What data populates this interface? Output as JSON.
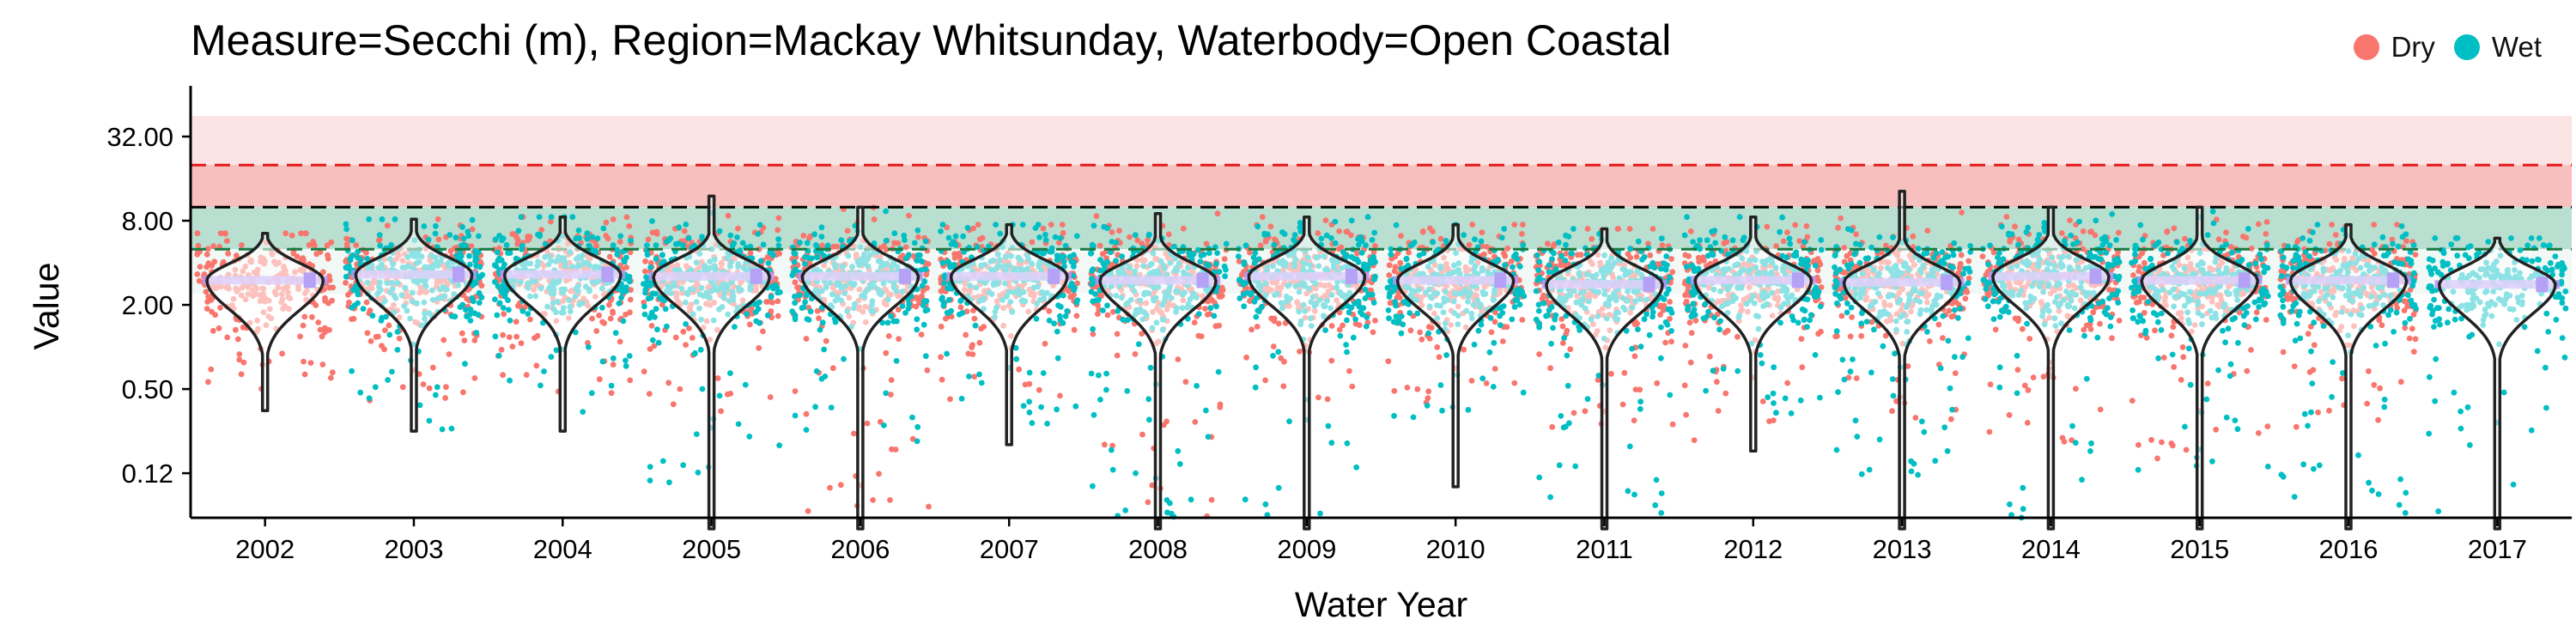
{
  "chart_data": {
    "type": "violin",
    "title": "Measure=Secchi (m), Region=Mackay Whitsunday, Waterbody=Open Coastal",
    "xlabel": "Water Year",
    "ylabel": "Value",
    "y_scale": "log2",
    "ylim": [
      0.06,
      64
    ],
    "y_ticks": [
      "0.12",
      "0.50",
      "2.00",
      "8.00",
      "32.00"
    ],
    "y_tick_values": [
      0.125,
      0.5,
      2,
      8,
      32
    ],
    "categories": [
      "2002",
      "2003",
      "2004",
      "2005",
      "2006",
      "2007",
      "2008",
      "2009",
      "2010",
      "2011",
      "2012",
      "2013",
      "2014",
      "2015",
      "2016",
      "2017"
    ],
    "legend": {
      "position": "top-right",
      "entries": [
        {
          "name": "Dry",
          "color": "#F8766D"
        },
        {
          "name": "Wet",
          "color": "#00BFC4"
        }
      ]
    },
    "reference_lines": [
      {
        "value": 20.0,
        "color": "#E41A1C",
        "style": "dashed"
      },
      {
        "value": 10.0,
        "color": "#000000",
        "style": "dashed"
      },
      {
        "value": 5.0,
        "color": "#1B7A43",
        "style": "dashed"
      }
    ],
    "bands": [
      {
        "from": 20.0,
        "to": 45.0,
        "color": "#FBE4E3"
      },
      {
        "from": 10.0,
        "to": 20.0,
        "color": "#F7BFBE"
      },
      {
        "from": 5.0,
        "to": 10.0,
        "color": "#B9DFD1"
      },
      {
        "from": 2.4,
        "to": 5.0,
        "color": "#F1F8F5"
      }
    ],
    "series": [
      {
        "year": "2002",
        "min": 0.35,
        "max": 6.5,
        "median": 3.0,
        "dry": true,
        "wet": false,
        "dry_min": 0.5,
        "wet_min": 0.9
      },
      {
        "year": "2003",
        "min": 0.25,
        "max": 8.2,
        "median": 3.3,
        "dry": true,
        "wet": true,
        "dry_min": 0.4,
        "wet_min": 0.25
      },
      {
        "year": "2004",
        "min": 0.25,
        "max": 8.5,
        "median": 3.3,
        "dry": true,
        "wet": true,
        "dry_min": 0.4,
        "wet_min": 0.25
      },
      {
        "year": "2005",
        "min": 0.05,
        "max": 12.0,
        "median": 3.2,
        "dry": true,
        "wet": true,
        "dry_min": 0.3,
        "wet_min": 0.1
      },
      {
        "year": "2006",
        "min": 0.05,
        "max": 10.0,
        "median": 3.2,
        "dry": true,
        "wet": true,
        "dry_min": 0.06,
        "wet_min": 0.2
      },
      {
        "year": "2007",
        "min": 0.2,
        "max": 7.5,
        "median": 3.2,
        "dry": true,
        "wet": true,
        "dry_min": 0.4,
        "wet_min": 0.25
      },
      {
        "year": "2008",
        "min": 0.05,
        "max": 9.0,
        "median": 3.0,
        "dry": true,
        "wet": true,
        "dry_min": 0.06,
        "wet_min": 0.06
      },
      {
        "year": "2009",
        "min": 0.05,
        "max": 8.5,
        "median": 3.2,
        "dry": true,
        "wet": true,
        "dry_min": 0.4,
        "wet_min": 0.06
      },
      {
        "year": "2010",
        "min": 0.1,
        "max": 7.5,
        "median": 3.0,
        "dry": true,
        "wet": true,
        "dry_min": 0.4,
        "wet_min": 0.3
      },
      {
        "year": "2011",
        "min": 0.05,
        "max": 7.0,
        "median": 2.8,
        "dry": true,
        "wet": true,
        "dry_min": 0.25,
        "wet_min": 0.06
      },
      {
        "year": "2012",
        "min": 0.18,
        "max": 8.5,
        "median": 3.0,
        "dry": true,
        "wet": true,
        "dry_min": 0.2,
        "wet_min": 0.3
      },
      {
        "year": "2013",
        "min": 0.05,
        "max": 13.0,
        "median": 2.9,
        "dry": true,
        "wet": true,
        "dry_min": 0.3,
        "wet_min": 0.12
      },
      {
        "year": "2014",
        "min": 0.05,
        "max": 10.0,
        "median": 3.2,
        "dry": true,
        "wet": true,
        "dry_min": 0.2,
        "wet_min": 0.06
      },
      {
        "year": "2015",
        "min": 0.05,
        "max": 10.0,
        "median": 3.0,
        "dry": true,
        "wet": true,
        "dry_min": 0.15,
        "wet_min": 0.12
      },
      {
        "year": "2016",
        "min": 0.05,
        "max": 7.5,
        "median": 3.0,
        "dry": true,
        "wet": true,
        "dry_min": 0.25,
        "wet_min": 0.06
      },
      {
        "year": "2017",
        "min": 0.05,
        "max": 6.0,
        "median": 2.8,
        "dry": false,
        "wet": true,
        "dry_min": 0.5,
        "wet_min": 0.06
      }
    ]
  }
}
